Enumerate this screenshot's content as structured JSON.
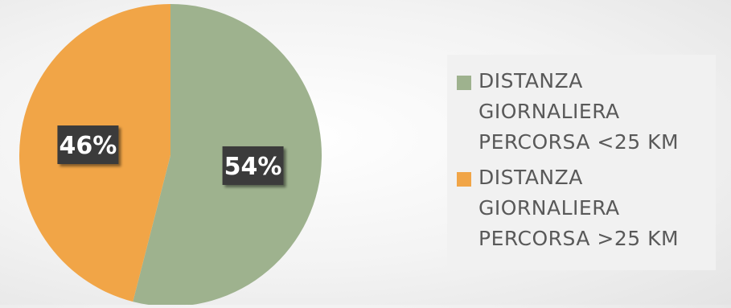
{
  "chart_data": {
    "type": "pie",
    "categories": [
      "DISTANZA GIORNALIERA PERCORSA <25 KM",
      "DISTANZA GIORNALIERA PERCORSA >25 KM"
    ],
    "values": [
      54,
      46
    ],
    "data_labels": [
      "54%",
      "46%"
    ],
    "colors": [
      "#9eb28e",
      "#f1a547"
    ],
    "start_angle_deg": 0,
    "direction": "clockwise",
    "legend_position": "right",
    "title": ""
  },
  "legend": {
    "items": [
      {
        "label": "DISTANZA\nGIORNALIERA\nPERCORSA <25 KM",
        "color": "#9eb28e"
      },
      {
        "label": "DISTANZA\nGIORNALIERA\nPERCORSA >25 KM",
        "color": "#f1a547"
      }
    ]
  },
  "style": {
    "label_box_color": "#3a3a3a",
    "label_text_color": "#ffffff",
    "legend_text_color": "#595959"
  }
}
